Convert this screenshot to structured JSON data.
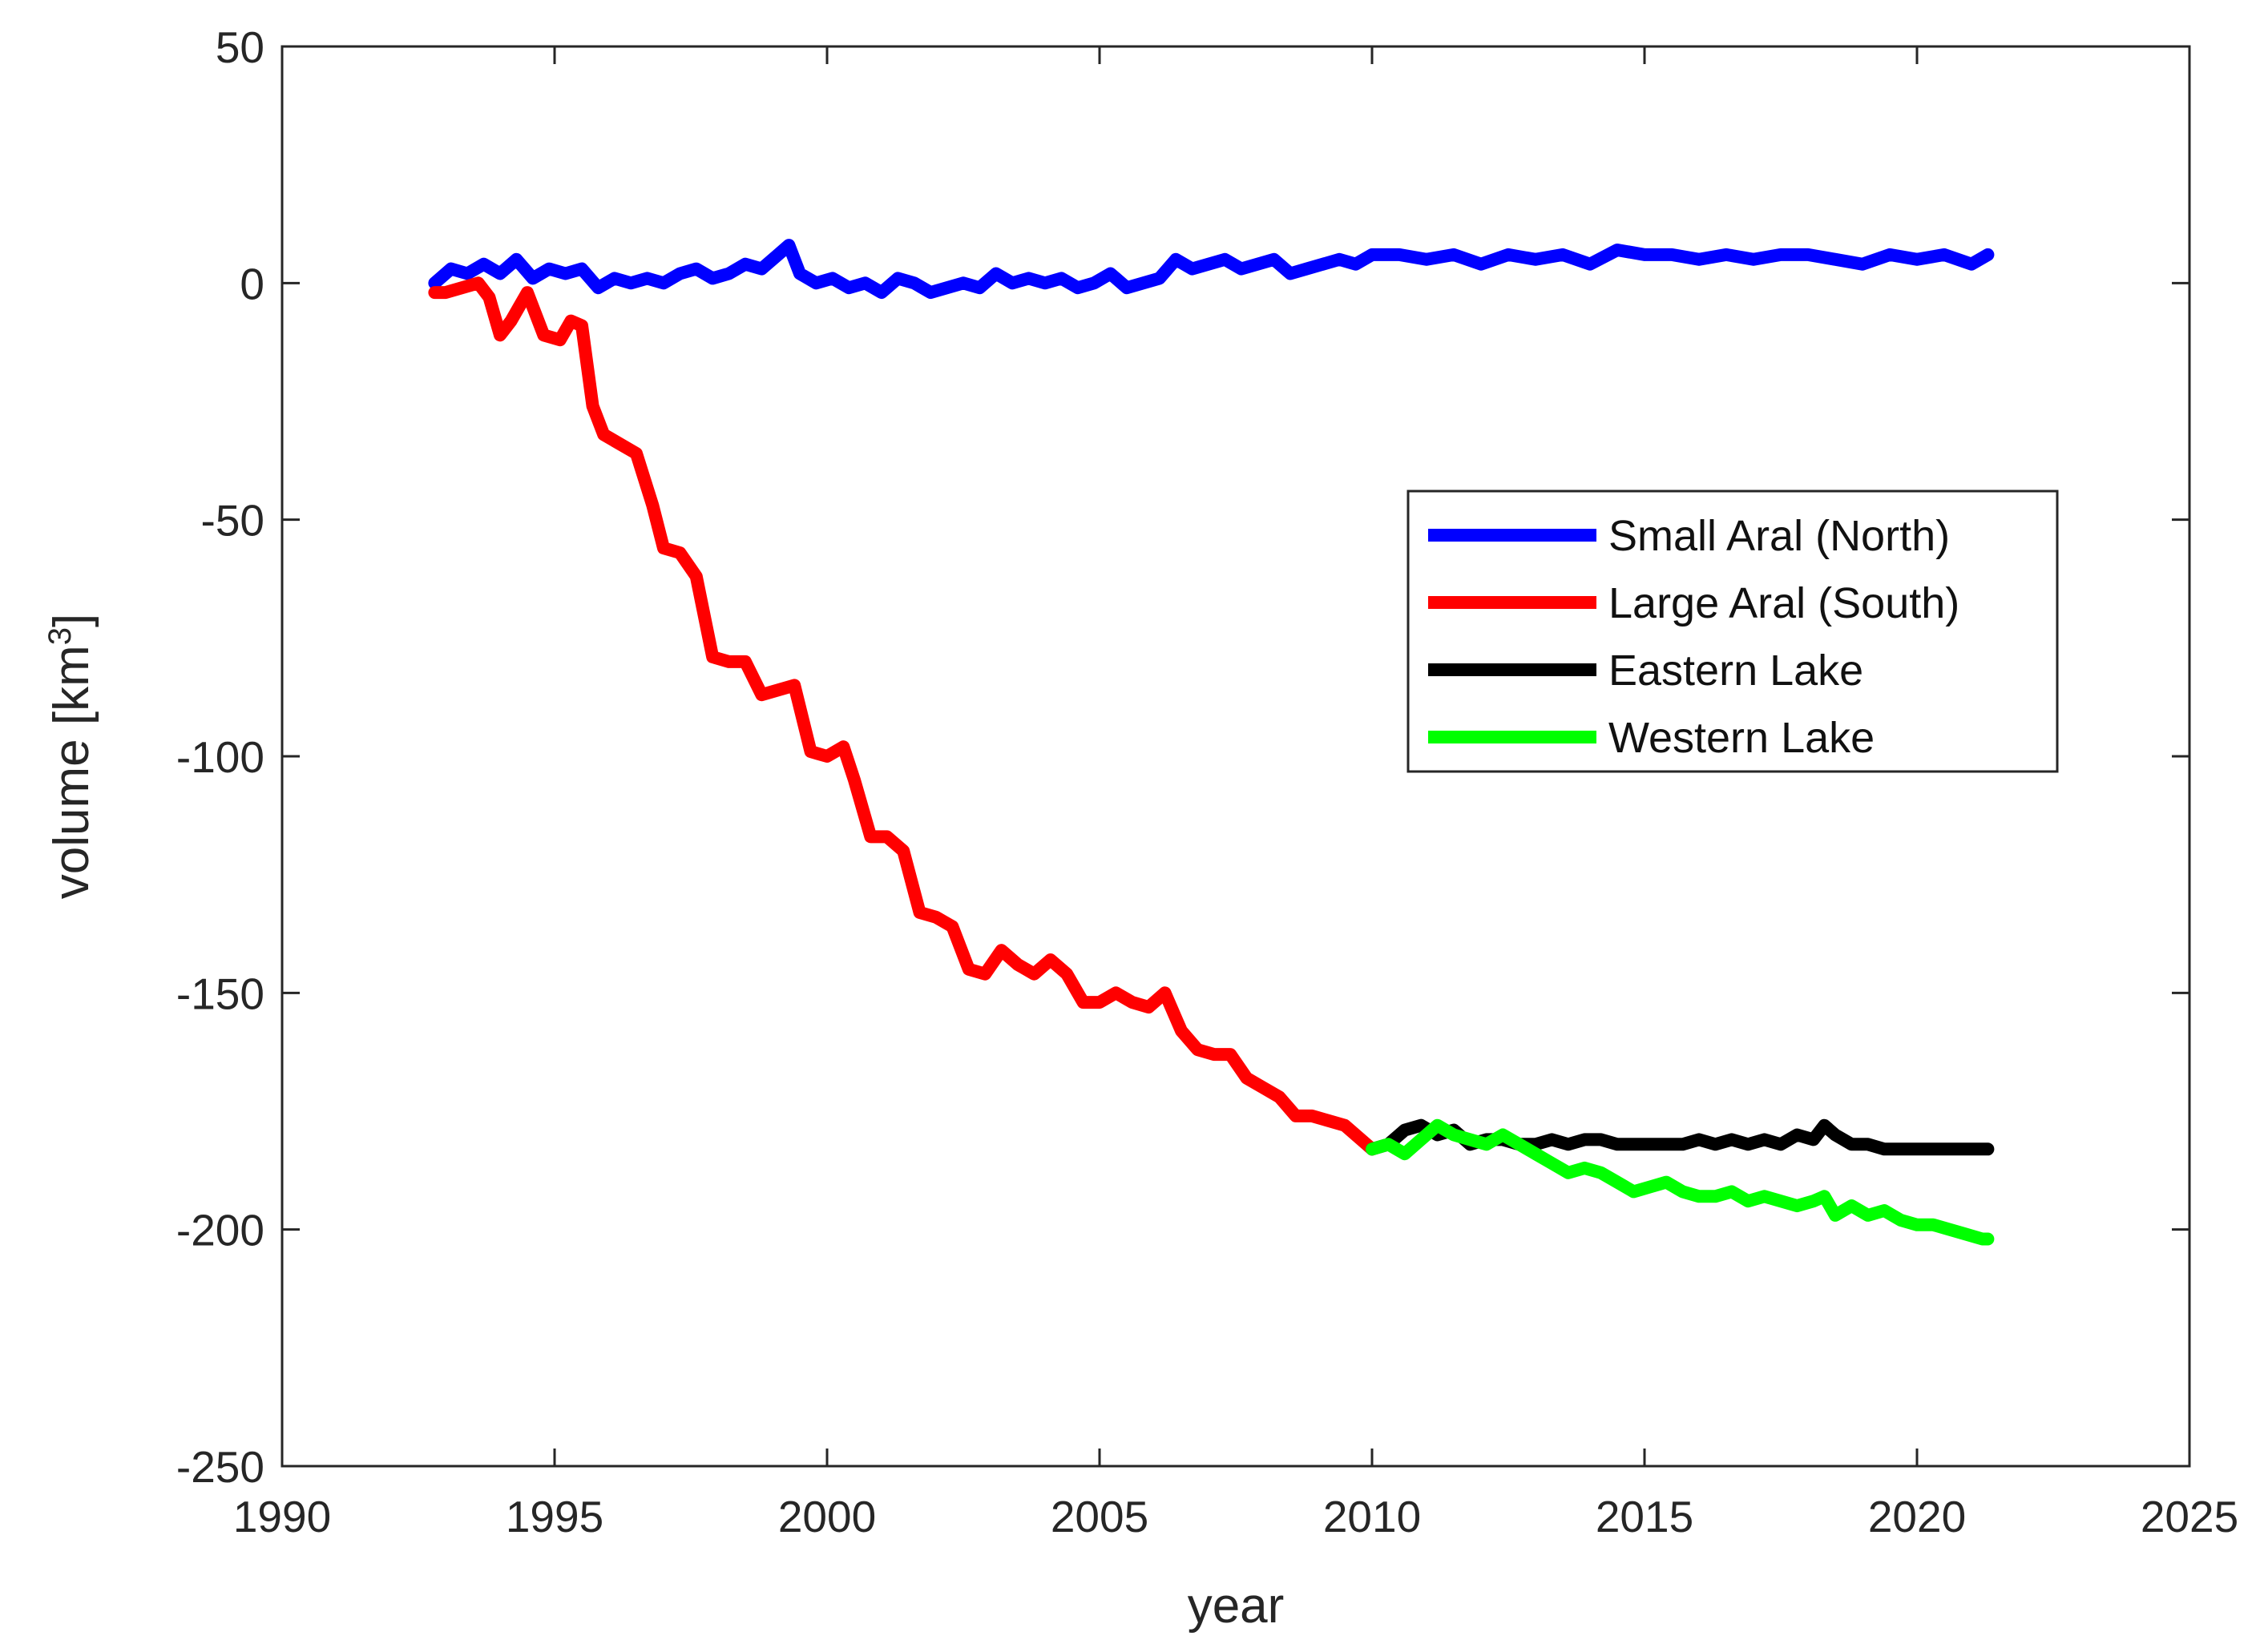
{
  "chart_data": {
    "type": "line",
    "title": "",
    "xlabel": "year",
    "ylabel": "volume [km",
    "ylabel_sup": "3",
    "ylabel_close": "]",
    "xlim": [
      1990,
      2025
    ],
    "ylim": [
      -250,
      50
    ],
    "xticks": [
      1990,
      1995,
      2000,
      2005,
      2010,
      2015,
      2020,
      2025
    ],
    "yticks": [
      50,
      0,
      -50,
      -100,
      -150,
      -200,
      -250
    ],
    "grid": false,
    "legend_position": "right-center",
    "series": [
      {
        "name": "Small Aral (North)",
        "color": "#0000ff",
        "x": [
          1992.8,
          1993.1,
          1993.4,
          1993.7,
          1994.0,
          1994.3,
          1994.6,
          1994.9,
          1995.2,
          1995.5,
          1995.8,
          1996.1,
          1996.4,
          1996.7,
          1997.0,
          1997.3,
          1997.6,
          1997.9,
          1998.2,
          1998.5,
          1998.8,
          1999.1,
          1999.3,
          1999.5,
          1999.8,
          2000.1,
          2000.4,
          2000.7,
          2001.0,
          2001.3,
          2001.6,
          2001.9,
          2002.2,
          2002.5,
          2002.8,
          2003.1,
          2003.4,
          2003.7,
          2004.0,
          2004.3,
          2004.6,
          2004.9,
          2005.2,
          2005.5,
          2005.8,
          2006.1,
          2006.4,
          2006.7,
          2007.0,
          2007.3,
          2007.6,
          2007.9,
          2008.2,
          2008.5,
          2008.8,
          2009.1,
          2009.4,
          2009.7,
          2010.0,
          2010.5,
          2011.0,
          2011.5,
          2012.0,
          2012.5,
          2013.0,
          2013.5,
          2014.0,
          2014.5,
          2015.0,
          2015.5,
          2016.0,
          2016.5,
          2017.0,
          2017.5,
          2018.0,
          2018.5,
          2019.0,
          2019.5,
          2020.0,
          2020.5,
          2021.0,
          2021.3
        ],
        "y": [
          0,
          3,
          2,
          4,
          2,
          5,
          1,
          3,
          2,
          3,
          -1,
          1,
          0,
          1,
          0,
          2,
          3,
          1,
          2,
          4,
          3,
          6,
          8,
          2,
          0,
          1,
          -1,
          0,
          -2,
          1,
          0,
          -2,
          -1,
          0,
          -1,
          2,
          0,
          1,
          0,
          1,
          -1,
          0,
          2,
          -1,
          0,
          1,
          5,
          3,
          4,
          5,
          3,
          4,
          5,
          2,
          3,
          4,
          5,
          4,
          6,
          6,
          5,
          6,
          4,
          6,
          5,
          6,
          4,
          7,
          6,
          6,
          5,
          6,
          5,
          6,
          6,
          5,
          4,
          6,
          5,
          6,
          4,
          6
        ]
      },
      {
        "name": "Large Aral (South)",
        "color": "#ff0000",
        "x": [
          1992.8,
          1993.0,
          1993.3,
          1993.6,
          1993.8,
          1994.0,
          1994.2,
          1994.5,
          1994.8,
          1995.1,
          1995.3,
          1995.5,
          1995.7,
          1995.9,
          1996.2,
          1996.5,
          1996.8,
          1997.0,
          1997.3,
          1997.6,
          1997.9,
          1998.2,
          1998.5,
          1998.8,
          1999.1,
          1999.4,
          1999.7,
          2000.0,
          2000.3,
          2000.5,
          2000.8,
          2001.1,
          2001.4,
          2001.7,
          2002.0,
          2002.3,
          2002.6,
          2002.9,
          2003.2,
          2003.5,
          2003.8,
          2004.1,
          2004.4,
          2004.7,
          2005.0,
          2005.3,
          2005.6,
          2005.9,
          2006.2,
          2006.5,
          2006.8,
          2007.1,
          2007.4,
          2007.7,
          2008.0,
          2008.3,
          2008.6,
          2008.9,
          2009.2,
          2009.5,
          2009.8,
          2010.0
        ],
        "y": [
          -2,
          -2,
          -1,
          0,
          -3,
          -11,
          -8,
          -2,
          -11,
          -12,
          -8,
          -9,
          -26,
          -32,
          -34,
          -36,
          -47,
          -56,
          -57,
          -62,
          -79,
          -80,
          -80,
          -87,
          -86,
          -85,
          -99,
          -100,
          -98,
          -105,
          -117,
          -117,
          -120,
          -133,
          -134,
          -136,
          -145,
          -146,
          -141,
          -144,
          -146,
          -143,
          -146,
          -152,
          -152,
          -150,
          -152,
          -153,
          -150,
          -158,
          -162,
          -163,
          -163,
          -168,
          -170,
          -172,
          -176,
          -176,
          -177,
          -178,
          -181,
          -183
        ]
      },
      {
        "name": "Eastern Lake",
        "color": "#000000",
        "x": [
          2010.0,
          2010.3,
          2010.6,
          2010.9,
          2011.2,
          2011.5,
          2011.8,
          2012.1,
          2012.4,
          2012.7,
          2013.0,
          2013.3,
          2013.6,
          2013.9,
          2014.2,
          2014.5,
          2014.8,
          2015.1,
          2015.4,
          2015.7,
          2016.0,
          2016.3,
          2016.6,
          2016.9,
          2017.2,
          2017.5,
          2017.8,
          2018.1,
          2018.3,
          2018.5,
          2018.8,
          2019.1,
          2019.4,
          2019.7,
          2020.0,
          2020.3,
          2020.6,
          2020.9,
          2021.2,
          2021.3
        ],
        "y": [
          -183,
          -182,
          -179,
          -178,
          -180,
          -179,
          -182,
          -181,
          -181,
          -182,
          -182,
          -181,
          -182,
          -181,
          -181,
          -182,
          -182,
          -182,
          -182,
          -182,
          -181,
          -182,
          -181,
          -182,
          -181,
          -182,
          -180,
          -181,
          -178,
          -180,
          -182,
          -182,
          -183,
          -183,
          -183,
          -183,
          -183,
          -183,
          -183,
          -183
        ]
      },
      {
        "name": "Western Lake",
        "color": "#00ff00",
        "x": [
          2010.0,
          2010.3,
          2010.6,
          2010.9,
          2011.2,
          2011.5,
          2011.8,
          2012.1,
          2012.4,
          2012.7,
          2013.0,
          2013.3,
          2013.6,
          2013.9,
          2014.2,
          2014.5,
          2014.8,
          2015.1,
          2015.4,
          2015.7,
          2016.0,
          2016.3,
          2016.6,
          2016.9,
          2017.2,
          2017.5,
          2017.8,
          2018.1,
          2018.3,
          2018.5,
          2018.8,
          2019.1,
          2019.4,
          2019.7,
          2020.0,
          2020.3,
          2020.6,
          2020.9,
          2021.2,
          2021.3
        ],
        "y": [
          -183,
          -182,
          -184,
          -181,
          -178,
          -180,
          -181,
          -182,
          -180,
          -182,
          -184,
          -186,
          -188,
          -187,
          -188,
          -190,
          -192,
          -191,
          -190,
          -192,
          -193,
          -193,
          -192,
          -194,
          -193,
          -194,
          -195,
          -194,
          -193,
          -197,
          -195,
          -197,
          -196,
          -198,
          -199,
          -199,
          -200,
          -201,
          -202,
          -202
        ]
      }
    ]
  }
}
